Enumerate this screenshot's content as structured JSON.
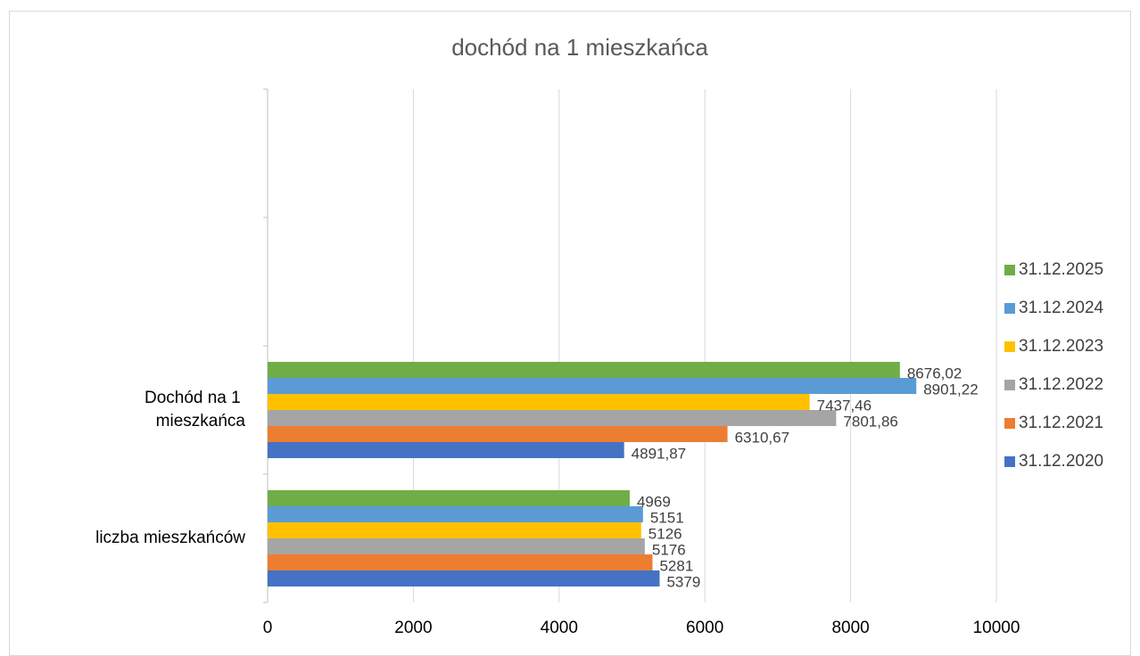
{
  "chart_data": {
    "type": "bar",
    "orientation": "horizontal",
    "title": "dochód na 1 mieszkańca",
    "categories": [
      "liczba mieszkańców",
      "Dochód na 1 mieszkańca",
      null,
      null
    ],
    "series": [
      {
        "name": "31.12.2020",
        "color": "#4472c4",
        "values": [
          5379,
          4891.87,
          null,
          null
        ],
        "value_labels": [
          "5379",
          "4891,87",
          null,
          null
        ]
      },
      {
        "name": "31.12.2021",
        "color": "#ed7d31",
        "values": [
          5281,
          6310.67,
          null,
          null
        ],
        "value_labels": [
          "5281",
          "6310,67",
          null,
          null
        ]
      },
      {
        "name": "31.12.2022",
        "color": "#a5a5a5",
        "values": [
          5176,
          7801.86,
          null,
          null
        ],
        "value_labels": [
          "5176",
          "7801,86",
          null,
          null
        ]
      },
      {
        "name": "31.12.2023",
        "color": "#ffc000",
        "values": [
          5126,
          7437.46,
          null,
          null
        ],
        "value_labels": [
          "5126",
          "7437,46",
          null,
          null
        ]
      },
      {
        "name": "31.12.2024",
        "color": "#5b9bd5",
        "values": [
          5151,
          8901.22,
          null,
          null
        ],
        "value_labels": [
          "5151",
          "8901,22",
          null,
          null
        ]
      },
      {
        "name": "31.12.2025",
        "color": "#70ad47",
        "values": [
          4969,
          8676.02,
          null,
          null
        ],
        "value_labels": [
          "4969",
          "8676,02",
          null,
          null
        ]
      }
    ],
    "xlim": [
      0,
      10000
    ],
    "xticks": [
      0,
      2000,
      4000,
      6000,
      8000,
      10000
    ],
    "grid": true,
    "legend": "right"
  }
}
